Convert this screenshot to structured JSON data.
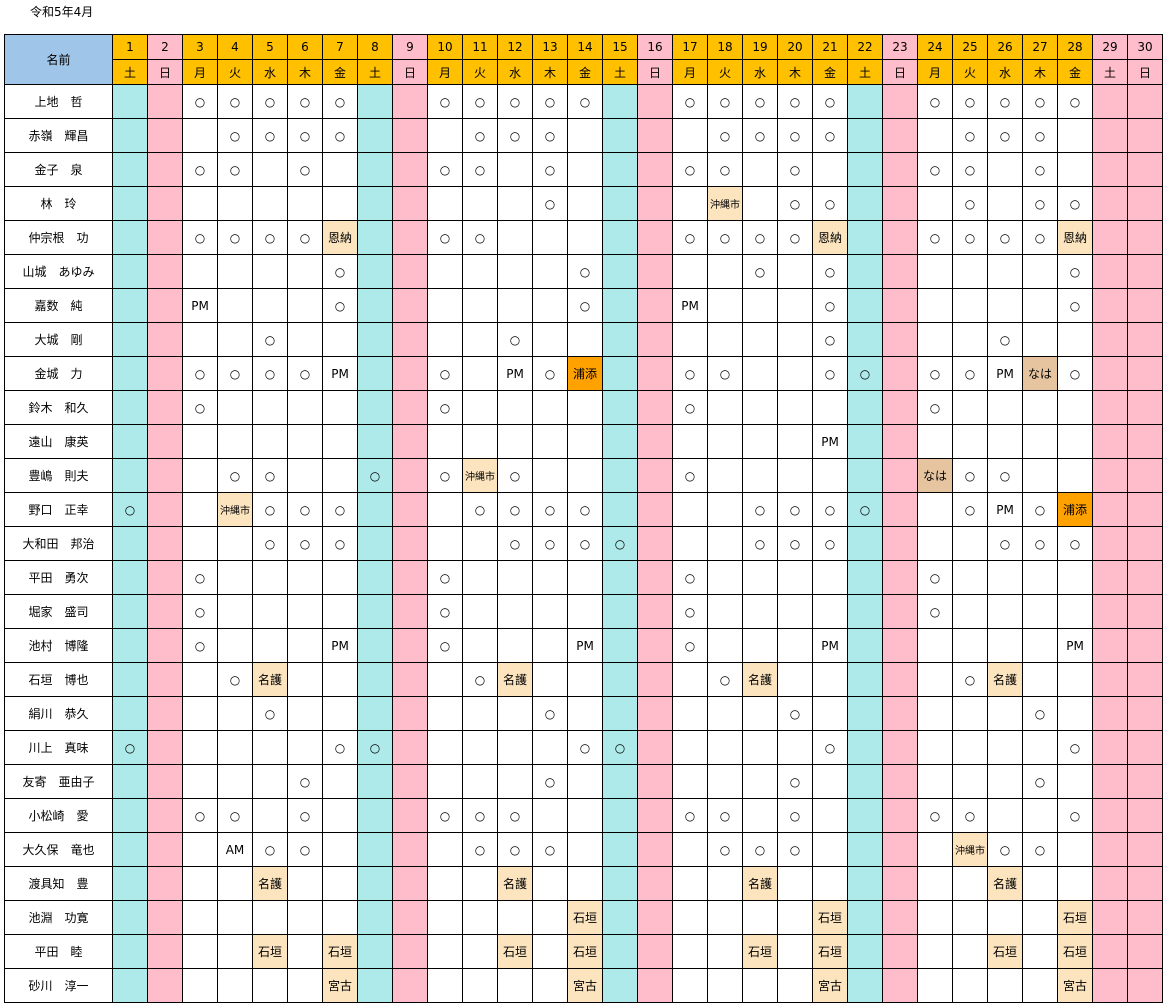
{
  "title": "令和5年4月",
  "name_header": "名前",
  "days": [
    {
      "d": "1",
      "w": "土",
      "t": "sat"
    },
    {
      "d": "2",
      "w": "日",
      "t": "sun"
    },
    {
      "d": "3",
      "w": "月",
      "t": "w"
    },
    {
      "d": "4",
      "w": "火",
      "t": "w"
    },
    {
      "d": "5",
      "w": "水",
      "t": "w"
    },
    {
      "d": "6",
      "w": "木",
      "t": "w"
    },
    {
      "d": "7",
      "w": "金",
      "t": "w"
    },
    {
      "d": "8",
      "w": "土",
      "t": "sat"
    },
    {
      "d": "9",
      "w": "日",
      "t": "sun"
    },
    {
      "d": "10",
      "w": "月",
      "t": "w"
    },
    {
      "d": "11",
      "w": "火",
      "t": "w"
    },
    {
      "d": "12",
      "w": "水",
      "t": "w"
    },
    {
      "d": "13",
      "w": "木",
      "t": "w"
    },
    {
      "d": "14",
      "w": "金",
      "t": "w"
    },
    {
      "d": "15",
      "w": "土",
      "t": "sat"
    },
    {
      "d": "16",
      "w": "日",
      "t": "sun"
    },
    {
      "d": "17",
      "w": "月",
      "t": "w"
    },
    {
      "d": "18",
      "w": "火",
      "t": "w"
    },
    {
      "d": "19",
      "w": "水",
      "t": "w"
    },
    {
      "d": "20",
      "w": "木",
      "t": "w"
    },
    {
      "d": "21",
      "w": "金",
      "t": "w"
    },
    {
      "d": "22",
      "w": "土",
      "t": "sat"
    },
    {
      "d": "23",
      "w": "日",
      "t": "sun"
    },
    {
      "d": "24",
      "w": "月",
      "t": "w"
    },
    {
      "d": "25",
      "w": "火",
      "t": "w"
    },
    {
      "d": "26",
      "w": "水",
      "t": "w"
    },
    {
      "d": "27",
      "w": "木",
      "t": "w"
    },
    {
      "d": "28",
      "w": "金",
      "t": "w"
    },
    {
      "d": "29",
      "w": "土",
      "t": "sun"
    },
    {
      "d": "30",
      "w": "日",
      "t": "sun"
    }
  ],
  "highlight_colors": {
    "light": "#fce4bf",
    "orange": "#ffa200",
    "tan": "#e6c4a0",
    "saturday": "#aeeae9",
    "sunday": "#ffbccb",
    "header_day": "#ffc000",
    "header_name": "#9fc5e8"
  },
  "rows": [
    {
      "name": "上地　哲",
      "cells": {
        "3": "○",
        "4": "○",
        "5": "○",
        "6": "○",
        "7": "○",
        "10": "○",
        "11": "○",
        "12": "○",
        "13": "○",
        "14": "○",
        "17": "○",
        "18": "○",
        "19": "○",
        "20": "○",
        "21": "○",
        "24": "○",
        "25": "○",
        "26": "○",
        "27": "○",
        "28": "○"
      }
    },
    {
      "name": "赤嶺　輝昌",
      "cells": {
        "4": "○",
        "5": "○",
        "6": "○",
        "7": "○",
        "11": "○",
        "12": "○",
        "13": "○",
        "18": "○",
        "19": "○",
        "20": "○",
        "21": "○",
        "25": "○",
        "26": "○",
        "27": "○"
      }
    },
    {
      "name": "金子　泉",
      "cells": {
        "3": "○",
        "4": "○",
        "6": "○",
        "10": "○",
        "11": "○",
        "13": "○",
        "17": "○",
        "18": "○",
        "20": "○",
        "24": "○",
        "25": "○",
        "27": "○"
      }
    },
    {
      "name": "林　玲",
      "cells": {
        "13": "○",
        "18": "沖縄市",
        "20": "○",
        "21": "○",
        "25": "○",
        "27": "○",
        "28": "○"
      }
    },
    {
      "name": "仲宗根　功",
      "cells": {
        "3": "○",
        "4": "○",
        "5": "○",
        "6": "○",
        "7": "恩納",
        "10": "○",
        "11": "○",
        "17": "○",
        "18": "○",
        "19": "○",
        "20": "○",
        "21": "恩納",
        "24": "○",
        "25": "○",
        "26": "○",
        "27": "○",
        "28": "恩納"
      }
    },
    {
      "name": "山城　あゆみ",
      "cells": {
        "7": "○",
        "14": "○",
        "19": "○",
        "21": "○",
        "28": "○"
      }
    },
    {
      "name": "嘉数　純",
      "cells": {
        "3": "PM",
        "7": "○",
        "14": "○",
        "17": "PM",
        "21": "○",
        "28": "○"
      }
    },
    {
      "name": "大城　剛",
      "cells": {
        "5": "○",
        "12": "○",
        "21": "○",
        "26": "○"
      }
    },
    {
      "name": "金城　力",
      "cells": {
        "3": "○",
        "4": "○",
        "5": "○",
        "6": "○",
        "7": "PM",
        "10": "○",
        "12": "PM",
        "13": "○",
        "14": "浦添",
        "17": "○",
        "18": "○",
        "21": "○",
        "22": "○",
        "24": "○",
        "25": "○",
        "26": "PM",
        "27": "なは",
        "28": "○"
      }
    },
    {
      "name": "鈴木　和久",
      "cells": {
        "3": "○",
        "10": "○",
        "17": "○",
        "24": "○"
      }
    },
    {
      "name": "遠山　康英",
      "cells": {
        "21": "PM"
      }
    },
    {
      "name": "豊嶋　則夫",
      "cells": {
        "4": "○",
        "5": "○",
        "8": "○",
        "10": "○",
        "11": "沖縄市",
        "12": "○",
        "17": "○",
        "24": "なは",
        "25": "○",
        "26": "○"
      }
    },
    {
      "name": "野口　正幸",
      "cells": {
        "1": "○",
        "4": "沖縄市",
        "5": "○",
        "6": "○",
        "7": "○",
        "11": "○",
        "12": "○",
        "13": "○",
        "14": "○",
        "19": "○",
        "20": "○",
        "21": "○",
        "22": "○",
        "25": "○",
        "26": "PM",
        "27": "○",
        "28": "浦添"
      }
    },
    {
      "name": "大和田　邦治",
      "cells": {
        "5": "○",
        "6": "○",
        "7": "○",
        "12": "○",
        "13": "○",
        "14": "○",
        "15": "○",
        "19": "○",
        "20": "○",
        "21": "○",
        "26": "○",
        "27": "○",
        "28": "○"
      }
    },
    {
      "name": "平田　勇次",
      "cells": {
        "3": "○",
        "10": "○",
        "17": "○",
        "24": "○"
      }
    },
    {
      "name": "堀家　盛司",
      "cells": {
        "3": "○",
        "10": "○",
        "17": "○",
        "24": "○"
      }
    },
    {
      "name": "池村　博隆",
      "cells": {
        "3": "○",
        "7": "PM",
        "10": "○",
        "14": "PM",
        "17": "○",
        "21": "PM",
        "28": "PM"
      }
    },
    {
      "name": "石垣　博也",
      "cells": {
        "4": "○",
        "5": "名護",
        "11": "○",
        "12": "名護",
        "18": "○",
        "19": "名護",
        "25": "○",
        "26": "名護"
      }
    },
    {
      "name": "絹川　恭久",
      "cells": {
        "5": "○",
        "13": "○",
        "20": "○",
        "27": "○"
      }
    },
    {
      "name": "川上　真味",
      "cells": {
        "1": "○",
        "7": "○",
        "8": "○",
        "14": "○",
        "15": "○",
        "21": "○",
        "28": "○"
      }
    },
    {
      "name": "友寄　亜由子",
      "cells": {
        "6": "○",
        "13": "○",
        "20": "○",
        "27": "○"
      }
    },
    {
      "name": "小松崎　愛",
      "cells": {
        "3": "○",
        "4": "○",
        "6": "○",
        "10": "○",
        "11": "○",
        "12": "○",
        "17": "○",
        "18": "○",
        "20": "○",
        "24": "○",
        "25": "○",
        "28": "○"
      }
    },
    {
      "name": "大久保　竜也",
      "cells": {
        "4": "AM",
        "5": "○",
        "6": "○",
        "11": "○",
        "12": "○",
        "13": "○",
        "18": "○",
        "19": "○",
        "20": "○",
        "25": "沖縄市",
        "26": "○",
        "27": "○"
      }
    },
    {
      "name": "渡具知　豊",
      "cells": {
        "5": "名護",
        "12": "名護",
        "19": "名護",
        "26": "名護"
      }
    },
    {
      "name": "池淵　功寛",
      "cells": {
        "14": "石垣",
        "21": "石垣",
        "28": "石垣"
      }
    },
    {
      "name": "平田　睦",
      "cells": {
        "5": "石垣",
        "7": "石垣",
        "12": "石垣",
        "14": "石垣",
        "19": "石垣",
        "21": "石垣",
        "26": "石垣",
        "28": "石垣"
      }
    },
    {
      "name": "砂川　淳一",
      "cells": {
        "7": "宮古",
        "14": "宮古",
        "21": "宮古",
        "28": "宮古"
      }
    }
  ]
}
